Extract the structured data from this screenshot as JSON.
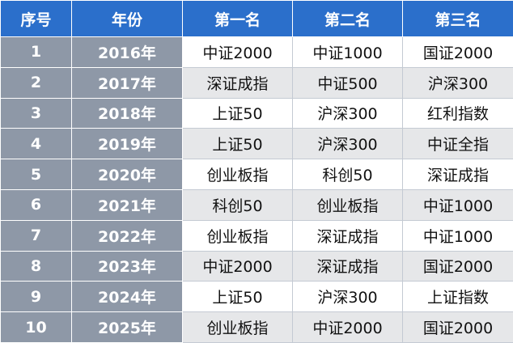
{
  "table": {
    "header": [
      "序号",
      "年份",
      "第一名",
      "第二名",
      "第三名"
    ],
    "rows": [
      [
        "1",
        "2016年",
        "中证2000",
        "中证1000",
        "国证2000"
      ],
      [
        "2",
        "2017年",
        "深证成指",
        "中证500",
        "沪深300"
      ],
      [
        "3",
        "2018年",
        "上证50",
        "沪深300",
        "红利指数"
      ],
      [
        "4",
        "2019年",
        "上证50",
        "沪深300",
        "中证全指"
      ],
      [
        "5",
        "2020年",
        "创业板指",
        "科创50",
        "深证成指"
      ],
      [
        "6",
        "2021年",
        "科创50",
        "创业板指",
        "中证1000"
      ],
      [
        "7",
        "2022年",
        "创业板指",
        "深证成指",
        "中证1000"
      ],
      [
        "8",
        "2023年",
        "中证2000",
        "深证成指",
        "国证2000"
      ],
      [
        "9",
        "2024年",
        "上证50",
        "沪深300",
        "上证指数"
      ],
      [
        "10",
        "2025年",
        "创业板指",
        "中证2000",
        "国证2000"
      ]
    ]
  }
}
